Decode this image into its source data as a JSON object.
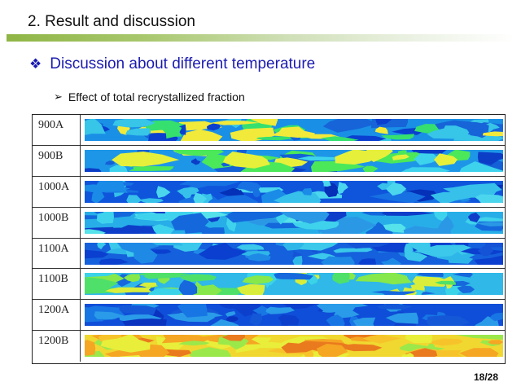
{
  "slide": {
    "title": "2. Result and discussion",
    "heading": "Discussion about different temperature",
    "heading_bullet": "❖",
    "sub_bullet_arrow": "➢",
    "sub_bullet": "Effect of total recrystallized fraction",
    "page_number": "18/28"
  },
  "samples": [
    {
      "label": "900A",
      "base": "#1a8fe6",
      "patches": [
        "#37c5e8",
        "#0a3fcf",
        "#35e06f",
        "#f2ea3a",
        "#1664d8"
      ]
    },
    {
      "label": "900B",
      "base": "#1e96e8",
      "patches": [
        "#3dd3ec",
        "#0b3dc7",
        "#4be85a",
        "#e6f03a",
        "#1460d6"
      ]
    },
    {
      "label": "1000A",
      "base": "#0f55dc",
      "patches": [
        "#1a8be6",
        "#36c0ea",
        "#0530b8",
        "#1771e2",
        "#4bd6ee"
      ]
    },
    {
      "label": "1000B",
      "base": "#27aee8",
      "patches": [
        "#3fd2ec",
        "#1468dc",
        "#0e3ec9",
        "#55e2ea",
        "#2b98e6"
      ]
    },
    {
      "label": "1100A",
      "base": "#1560dc",
      "patches": [
        "#1f8ae6",
        "#0a3fcf",
        "#2fb6e8",
        "#1452d6",
        "#3bc8ea"
      ]
    },
    {
      "label": "1100B",
      "base": "#2fb8e8",
      "patches": [
        "#4fe06a",
        "#d9ee3a",
        "#1668dc",
        "#3ad3e8",
        "#86e84a"
      ]
    },
    {
      "label": "1200A",
      "base": "#0f4ed8",
      "patches": [
        "#1876e4",
        "#0a33c0",
        "#2a9be8",
        "#1458d8",
        "#0c40cc"
      ]
    },
    {
      "label": "1200B",
      "base": "#f0d830",
      "patches": [
        "#f5a623",
        "#e8ee3a",
        "#ea7a1e",
        "#9be84a",
        "#f6c42a"
      ]
    }
  ]
}
